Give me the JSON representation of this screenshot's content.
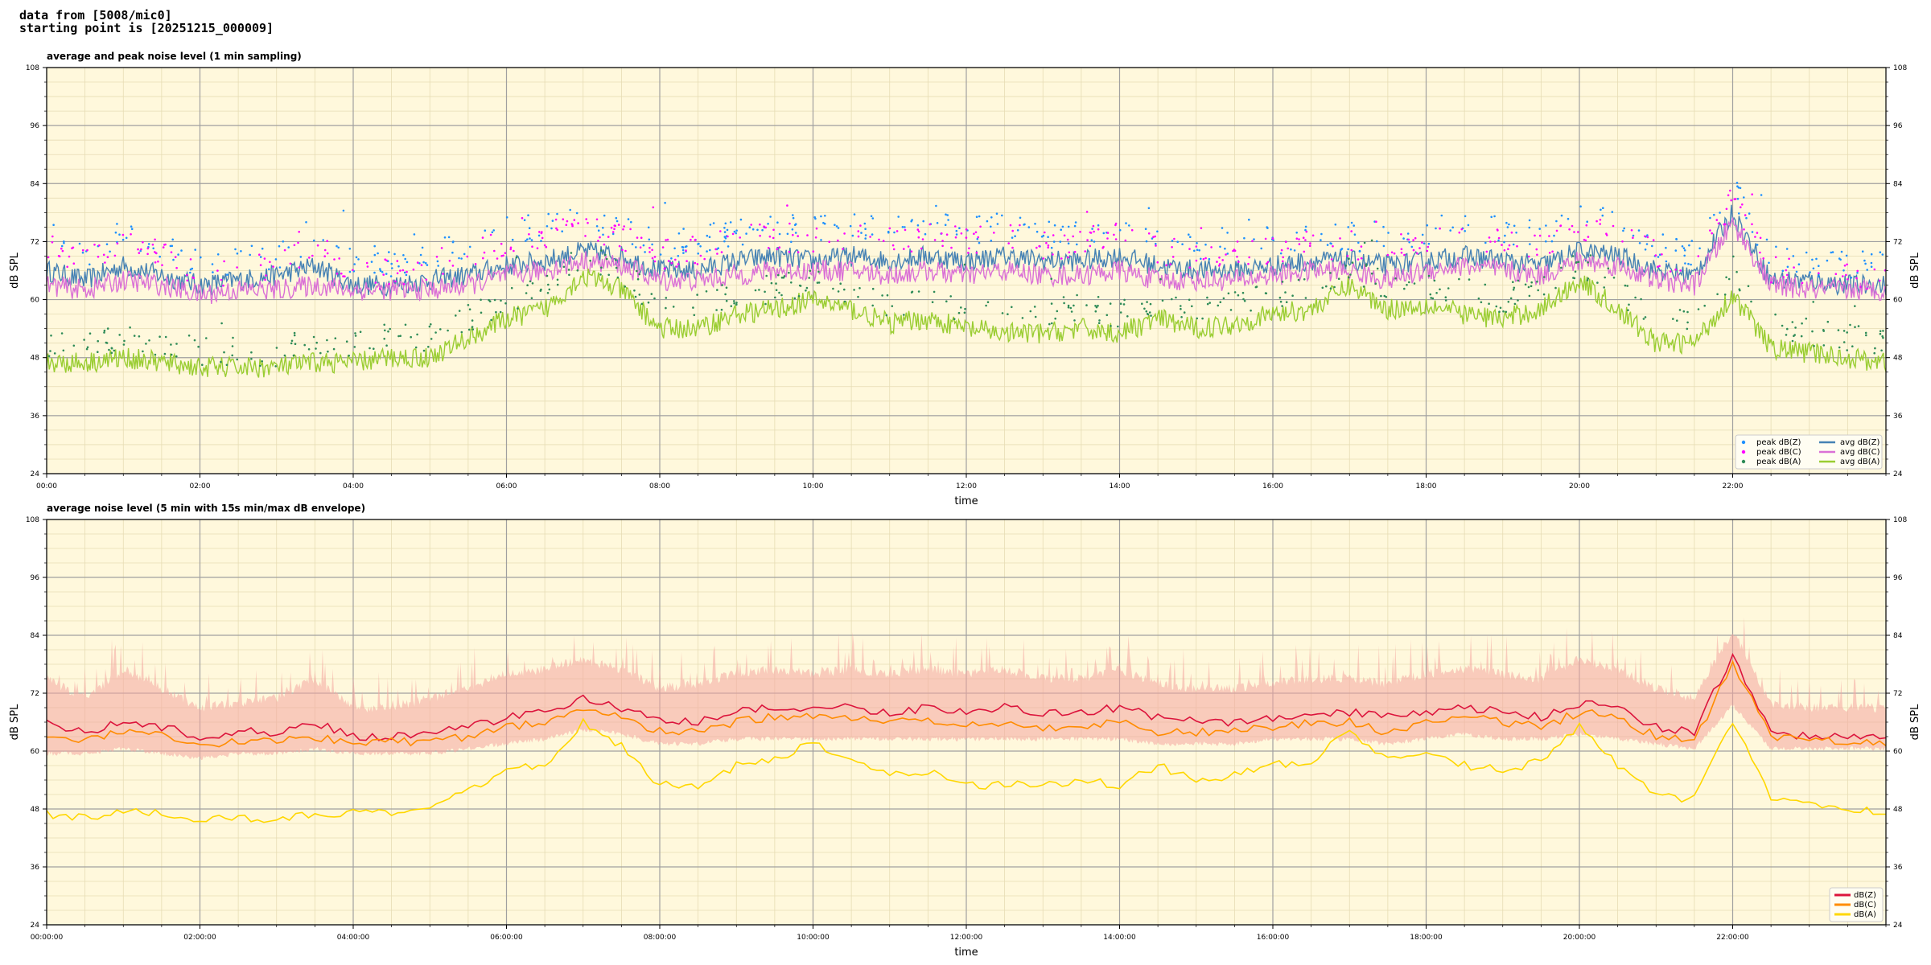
{
  "header": {
    "line1": "data from [5008/mic0]",
    "line2": "starting point is [20251215_000009]"
  },
  "chart_data": [
    {
      "type": "line",
      "title": "average and peak noise level (1 min sampling)",
      "xlabel": "time",
      "ylabel": "dB SPL",
      "xlim": [
        0,
        24
      ],
      "ylim": [
        24,
        108
      ],
      "yticks": [
        "24",
        "36",
        "48",
        "60",
        "72",
        "84",
        "96",
        "108"
      ],
      "xticks": [
        {
          "x": 0,
          "label": "00:00"
        },
        {
          "x": 2,
          "label": "02:00"
        },
        {
          "x": 4,
          "label": "04:00"
        },
        {
          "x": 6,
          "label": "06:00"
        },
        {
          "x": 8,
          "label": "08:00"
        },
        {
          "x": 10,
          "label": "10:00"
        },
        {
          "x": 12,
          "label": "12:00"
        },
        {
          "x": 14,
          "label": "14:00"
        },
        {
          "x": 16,
          "label": "16:00"
        },
        {
          "x": 18,
          "label": "18:00"
        },
        {
          "x": 20,
          "label": "20:00"
        },
        {
          "x": 22,
          "label": "22:00"
        }
      ],
      "grid": true,
      "background": "#fff8dc",
      "legend_position": "bottom-right",
      "x": [
        0,
        0.5,
        1,
        1.5,
        2,
        2.5,
        3,
        3.5,
        4,
        4.5,
        5,
        5.5,
        6,
        6.5,
        7,
        7.5,
        8,
        8.5,
        9,
        9.5,
        10,
        10.5,
        11,
        11.5,
        12,
        12.5,
        13,
        13.5,
        14,
        14.5,
        15,
        15.5,
        16,
        16.5,
        17,
        17.5,
        18,
        18.5,
        19,
        19.5,
        20,
        20.5,
        21,
        21.5,
        22,
        22.5,
        23,
        23.5,
        24
      ],
      "series": [
        {
          "name": "avg dB(Z)",
          "kind": "line",
          "color": "#4682b4",
          "values": [
            66,
            64,
            67,
            65,
            63,
            64,
            65,
            67,
            63,
            63,
            64,
            65,
            67,
            68,
            70,
            69,
            66,
            66,
            68,
            69,
            68,
            69,
            68,
            69,
            68,
            69,
            68,
            68,
            69,
            67,
            66,
            66,
            67,
            68,
            68,
            67,
            68,
            69,
            68,
            67,
            70,
            69,
            66,
            65,
            78,
            64,
            64,
            63,
            63
          ]
        },
        {
          "name": "avg dB(C)",
          "kind": "line",
          "color": "#da70d6",
          "values": [
            63,
            62,
            64,
            63,
            61,
            62,
            62,
            63,
            62,
            62,
            62,
            63,
            65,
            66,
            68,
            67,
            64,
            64,
            65,
            66,
            66,
            66,
            65,
            66,
            65,
            66,
            65,
            65,
            66,
            64,
            64,
            64,
            65,
            66,
            66,
            64,
            66,
            67,
            66,
            65,
            68,
            67,
            64,
            63,
            76,
            63,
            62,
            62,
            62
          ]
        },
        {
          "name": "avg dB(A)",
          "kind": "line",
          "color": "#9acd32",
          "values": [
            47,
            47,
            48,
            47,
            46,
            46,
            46,
            47,
            47,
            48,
            48,
            52,
            56,
            58,
            65,
            62,
            54,
            54,
            57,
            58,
            60,
            58,
            55,
            56,
            54,
            53,
            53,
            54,
            53,
            56,
            54,
            55,
            57,
            58,
            63,
            58,
            59,
            57,
            56,
            58,
            64,
            58,
            51,
            51,
            61,
            50,
            49,
            48,
            47
          ]
        },
        {
          "name": "peak dB(Z)",
          "kind": "scatter",
          "color": "#1e90ff",
          "values": [
            72,
            68,
            73,
            70,
            66,
            67,
            68,
            72,
            66,
            66,
            68,
            70,
            73,
            74,
            76,
            74,
            70,
            71,
            73,
            74,
            73,
            74,
            73,
            74,
            73,
            74,
            72,
            72,
            74,
            71,
            70,
            70,
            71,
            72,
            72,
            71,
            73,
            74,
            73,
            72,
            76,
            74,
            70,
            68,
            82,
            67,
            66,
            66,
            66
          ]
        },
        {
          "name": "peak dB(C)",
          "kind": "scatter",
          "color": "#ff00ff",
          "values": [
            70,
            66,
            71,
            68,
            64,
            65,
            66,
            70,
            64,
            64,
            66,
            68,
            71,
            72,
            74,
            72,
            68,
            69,
            71,
            72,
            71,
            72,
            71,
            72,
            71,
            72,
            70,
            70,
            72,
            69,
            68,
            68,
            69,
            70,
            70,
            69,
            71,
            72,
            71,
            70,
            74,
            72,
            68,
            66,
            80,
            65,
            64,
            64,
            64
          ]
        },
        {
          "name": "peak dB(A)",
          "kind": "scatter",
          "color": "#2e8b57",
          "values": [
            50,
            50,
            51,
            50,
            48,
            48,
            48,
            50,
            50,
            51,
            51,
            55,
            59,
            61,
            68,
            65,
            57,
            57,
            60,
            61,
            63,
            61,
            58,
            59,
            57,
            56,
            56,
            57,
            56,
            59,
            57,
            58,
            60,
            61,
            66,
            61,
            62,
            60,
            59,
            61,
            67,
            61,
            54,
            54,
            64,
            53,
            52,
            51,
            50
          ]
        }
      ]
    },
    {
      "type": "line",
      "title": "average noise level (5 min with 15s min/max dB envelope)",
      "xlabel": "time",
      "ylabel": "dB SPL",
      "xlim": [
        0,
        24
      ],
      "ylim": [
        24,
        108
      ],
      "yticks": [
        "24",
        "36",
        "48",
        "60",
        "72",
        "84",
        "96",
        "108"
      ],
      "xticks": [
        {
          "x": 0,
          "label": "00:00:00"
        },
        {
          "x": 2,
          "label": "02:00:00"
        },
        {
          "x": 4,
          "label": "04:00:00"
        },
        {
          "x": 6,
          "label": "06:00:00"
        },
        {
          "x": 8,
          "label": "08:00:00"
        },
        {
          "x": 10,
          "label": "10:00:00"
        },
        {
          "x": 12,
          "label": "12:00:00"
        },
        {
          "x": 14,
          "label": "14:00:00"
        },
        {
          "x": 16,
          "label": "16:00:00"
        },
        {
          "x": 18,
          "label": "18:00:00"
        },
        {
          "x": 20,
          "label": "20:00:00"
        },
        {
          "x": 22,
          "label": "22:00:00"
        }
      ],
      "grid": true,
      "background": "#fff8dc",
      "legend_position": "bottom-right",
      "envelope_color": "#f4a6a0",
      "x": [
        0,
        0.5,
        1,
        1.5,
        2,
        2.5,
        3,
        3.5,
        4,
        4.5,
        5,
        5.5,
        6,
        6.5,
        7,
        7.5,
        8,
        8.5,
        9,
        9.5,
        10,
        10.5,
        11,
        11.5,
        12,
        12.5,
        13,
        13.5,
        14,
        14.5,
        15,
        15.5,
        16,
        16.5,
        17,
        17.5,
        18,
        18.5,
        19,
        19.5,
        20,
        20.5,
        21,
        21.5,
        22,
        22.5,
        23,
        23.5,
        24
      ],
      "envelope_max": [
        74,
        70,
        76,
        72,
        68,
        69,
        70,
        74,
        68,
        68,
        70,
        72,
        75,
        76,
        78,
        76,
        72,
        73,
        75,
        76,
        75,
        76,
        75,
        76,
        75,
        76,
        74,
        74,
        76,
        73,
        72,
        72,
        73,
        74,
        74,
        73,
        75,
        76,
        75,
        74,
        78,
        76,
        72,
        70,
        84,
        69,
        68,
        68,
        68
      ],
      "envelope_min": [
        60,
        60,
        61,
        60,
        59,
        60,
        60,
        61,
        60,
        60,
        60,
        61,
        62,
        63,
        65,
        64,
        62,
        62,
        63,
        63,
        63,
        63,
        63,
        63,
        63,
        63,
        63,
        63,
        63,
        62,
        62,
        62,
        63,
        63,
        63,
        62,
        63,
        64,
        63,
        63,
        64,
        63,
        62,
        61,
        70,
        61,
        61,
        61,
        61
      ],
      "series": [
        {
          "name": "dB(Z)",
          "kind": "line",
          "color": "#dc143c",
          "values": [
            66,
            64,
            66,
            65,
            63,
            64,
            64,
            66,
            63,
            63,
            64,
            65,
            67,
            68,
            71,
            69,
            66,
            66,
            68,
            69,
            69,
            69,
            68,
            69,
            68,
            69,
            68,
            68,
            69,
            67,
            66,
            66,
            67,
            68,
            68,
            67,
            68,
            69,
            68,
            67,
            70,
            69,
            65,
            64,
            80,
            64,
            63,
            63,
            63
          ]
        },
        {
          "name": "dB(C)",
          "kind": "line",
          "color": "#ff8c00",
          "values": [
            63,
            62,
            64,
            63,
            61,
            62,
            62,
            63,
            62,
            62,
            62,
            63,
            65,
            66,
            69,
            67,
            64,
            64,
            66,
            67,
            67,
            67,
            66,
            66,
            65,
            66,
            65,
            65,
            66,
            64,
            64,
            64,
            65,
            66,
            66,
            64,
            66,
            67,
            66,
            65,
            68,
            67,
            63,
            62,
            78,
            63,
            62,
            62,
            62
          ]
        },
        {
          "name": "dB(A)",
          "kind": "line",
          "color": "#ffd700",
          "values": [
            47,
            46,
            48,
            47,
            46,
            46,
            46,
            47,
            47,
            47,
            48,
            52,
            56,
            57,
            66,
            61,
            53,
            53,
            57,
            58,
            62,
            58,
            55,
            56,
            53,
            53,
            53,
            54,
            53,
            57,
            54,
            55,
            57,
            58,
            64,
            58,
            59,
            57,
            56,
            58,
            65,
            57,
            51,
            50,
            66,
            50,
            49,
            48,
            47
          ]
        }
      ]
    }
  ]
}
